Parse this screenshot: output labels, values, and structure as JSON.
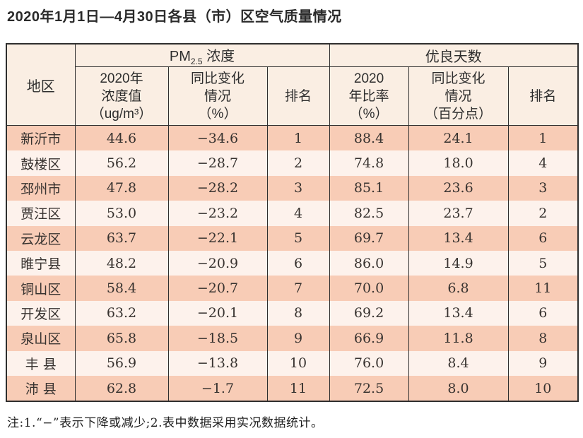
{
  "page": {
    "title": "2020年1月1日—4月30日各县（市）区空气质量情况",
    "note": "注:1.“−”表示下降或减少;2.表中数据采用实况数据统计。"
  },
  "colors": {
    "row-odd": "#f8ccb6",
    "row-even": "#fdf2ec",
    "header-bg": "#faeee3",
    "border-color": "#2e2e2e"
  },
  "table": {
    "header": {
      "region": "地区",
      "pm_group": {
        "main": "PM",
        "sub": "2.5",
        "rest": " 浓度"
      },
      "days_group": "优良天数",
      "pm_value": "2020年\n浓度值\n（ug/m³）",
      "pm_change": "同比变化\n情况\n（%）",
      "pm_rank": "排名",
      "days_rate": "2020\n年比率\n（%）",
      "days_change": "同比变化\n情况\n（百分点）",
      "days_rank": "排名"
    },
    "rows": [
      {
        "region": "新沂市",
        "pm_value": "44.6",
        "pm_change": "−34.6",
        "pm_rank": "1",
        "days_rate": "88.4",
        "days_change": "24.1",
        "days_rank": "1"
      },
      {
        "region": "鼓楼区",
        "pm_value": "56.2",
        "pm_change": "−28.7",
        "pm_rank": "2",
        "days_rate": "74.8",
        "days_change": "18.0",
        "days_rank": "4"
      },
      {
        "region": "邳州市",
        "pm_value": "47.8",
        "pm_change": "−28.2",
        "pm_rank": "3",
        "days_rate": "85.1",
        "days_change": "23.6",
        "days_rank": "3"
      },
      {
        "region": "贾汪区",
        "pm_value": "53.0",
        "pm_change": "−23.2",
        "pm_rank": "4",
        "days_rate": "82.5",
        "days_change": "23.7",
        "days_rank": "2"
      },
      {
        "region": "云龙区",
        "pm_value": "63.7",
        "pm_change": "−22.1",
        "pm_rank": "5",
        "days_rate": "69.7",
        "days_change": "13.4",
        "days_rank": "6"
      },
      {
        "region": "睢宁县",
        "pm_value": "48.2",
        "pm_change": "−20.9",
        "pm_rank": "6",
        "days_rate": "86.0",
        "days_change": "14.9",
        "days_rank": "5"
      },
      {
        "region": "铜山区",
        "pm_value": "58.4",
        "pm_change": "−20.7",
        "pm_rank": "7",
        "days_rate": "70.0",
        "days_change": "6.8",
        "days_rank": "11"
      },
      {
        "region": "开发区",
        "pm_value": "63.2",
        "pm_change": "−20.1",
        "pm_rank": "8",
        "days_rate": "69.2",
        "days_change": "13.4",
        "days_rank": "6"
      },
      {
        "region": "泉山区",
        "pm_value": "65.8",
        "pm_change": "−18.5",
        "pm_rank": "9",
        "days_rate": "66.9",
        "days_change": "11.8",
        "days_rank": "8"
      },
      {
        "region": "丰 县",
        "pm_value": "56.9",
        "pm_change": "−13.8",
        "pm_rank": "10",
        "days_rate": "76.0",
        "days_change": "8.4",
        "days_rank": "9"
      },
      {
        "region": "沛 县",
        "pm_value": "62.8",
        "pm_change": "−1.7",
        "pm_rank": "11",
        "days_rate": "72.5",
        "days_change": "8.0",
        "days_rank": "10"
      }
    ]
  }
}
